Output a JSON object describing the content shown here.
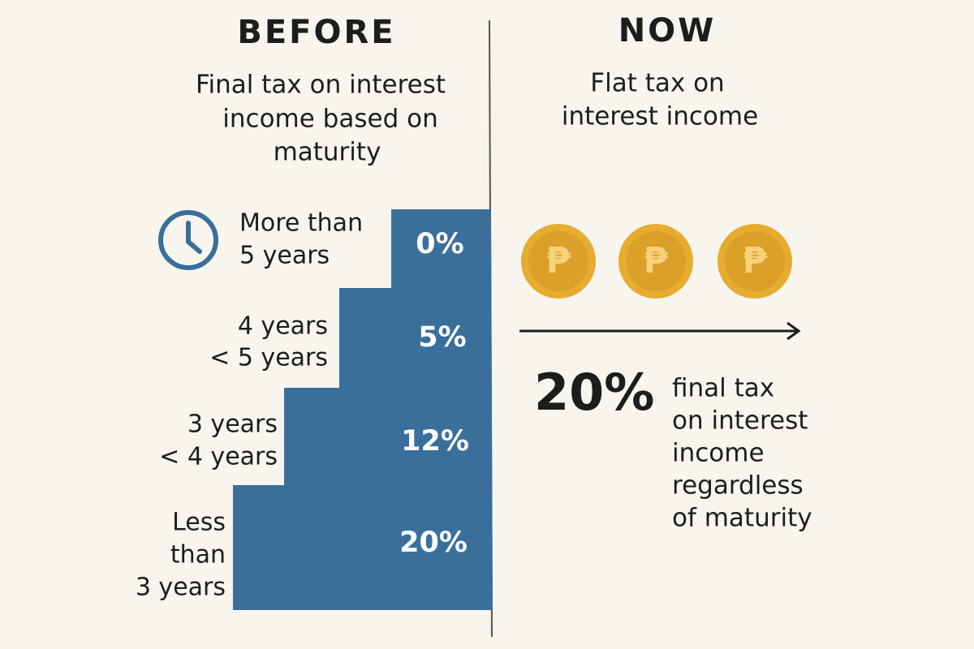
{
  "before": {
    "title": "BEFORE",
    "subtitle_lines": [
      "Final tax on interest",
      "income based on",
      "maturity"
    ],
    "tiers": [
      {
        "label_lines": [
          "More than",
          "5 years"
        ],
        "rate": "0%"
      },
      {
        "label_lines": [
          "4 years",
          "< 5 years"
        ],
        "rate": "5%"
      },
      {
        "label_lines": [
          "3 years",
          "< 4 years"
        ],
        "rate": "12%"
      },
      {
        "label_lines": [
          "Less",
          "than",
          "3 years"
        ],
        "rate": "20%"
      }
    ]
  },
  "now": {
    "title": "NOW",
    "subtitle_lines": [
      "Flat tax on",
      "interest income"
    ],
    "coins": [
      "₱",
      "₱",
      "₱"
    ],
    "rate": "20%",
    "note_lines": [
      "final tax",
      "on interest",
      "income",
      "regardless",
      "of maturity"
    ]
  }
}
